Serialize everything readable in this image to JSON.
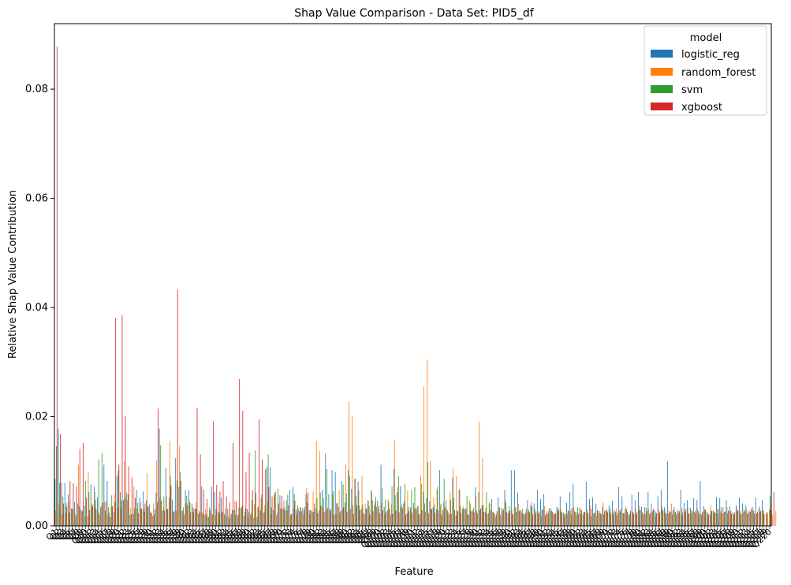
{
  "chart_data": {
    "type": "bar",
    "title": "Shap Value Comparison - Data Set: PID5_df",
    "xlabel": "Feature",
    "ylabel": "Relative Shap Value Contribution",
    "ylim": [
      0,
      0.092
    ],
    "yticks": [
      0.0,
      0.02,
      0.04,
      0.06,
      0.08
    ],
    "ytick_labels": [
      "0.00",
      "0.02",
      "0.04",
      "0.06",
      "0.08"
    ],
    "legend": {
      "title": "model",
      "placement": "top-right",
      "entries": [
        "logistic_reg",
        "random_forest",
        "svm",
        "xgboost"
      ]
    },
    "colors": {
      "logistic_reg": "#1f77b4",
      "random_forest": "#ff7f0e",
      "svm": "#2ca02c",
      "xgboost": "#d62728"
    },
    "tick_label_prefix": "Q",
    "n_features": 220,
    "series": [
      {
        "name": "logistic_reg",
        "values": [
          0.0086,
          0.0178,
          0.008,
          0.0079,
          0.0058,
          0.0032,
          0.0043,
          0.0041,
          0.003,
          0.0037,
          0.0018,
          0.0076,
          0.0072,
          0.0052,
          0.0034,
          0.0112,
          0.0082,
          0.0016,
          0.0025,
          0.0092,
          0.0062,
          0.0047,
          0.0061,
          0.002,
          0.0022,
          0.0066,
          0.0052,
          0.0063,
          0.0047,
          0.0039,
          0.0018,
          0.0061,
          0.0178,
          0.0028,
          0.0106,
          0.0052,
          0.0048,
          0.0124,
          0.0071,
          0.0028,
          0.0066,
          0.0066,
          0.0041,
          0.0031,
          0.0022,
          0.0072,
          0.002,
          0.0016,
          0.0072,
          0.0062,
          0.0026,
          0.0052,
          0.0022,
          0.0031,
          0.0021,
          0.0029,
          0.0019,
          0.0033,
          0.0018,
          0.0031,
          0.0021,
          0.0015,
          0.0016,
          0.0028,
          0.0024,
          0.0108,
          0.0107,
          0.0029,
          0.0019,
          0.0056,
          0.0031,
          0.0047,
          0.0066,
          0.0071,
          0.0029,
          0.0027,
          0.0033,
          0.0058,
          0.0029,
          0.0026,
          0.0032,
          0.0028,
          0.0066,
          0.0132,
          0.0058,
          0.0102,
          0.0098,
          0.0035,
          0.0082,
          0.0043,
          0.0102,
          0.0068,
          0.0086,
          0.0081,
          0.0031,
          0.0021,
          0.0047,
          0.0065,
          0.0039,
          0.0046,
          0.0112,
          0.0035,
          0.0028,
          0.0021,
          0.0104,
          0.0062,
          0.0073,
          0.0041,
          0.0023,
          0.0034,
          0.0042,
          0.0032,
          0.0021,
          0.0063,
          0.0051,
          0.0045,
          0.0034,
          0.0031,
          0.0102,
          0.0029,
          0.0047,
          0.0021,
          0.0088,
          0.0019,
          0.0067,
          0.0031,
          0.0031,
          0.0021,
          0.0026,
          0.0071,
          0.0062,
          0.0038,
          0.0026,
          0.0023,
          0.0049,
          0.0021,
          0.0052,
          0.0033,
          0.0066,
          0.0023,
          0.0102,
          0.0102,
          0.0061,
          0.0028,
          0.0021,
          0.0047,
          0.0038,
          0.0041,
          0.0066,
          0.0049,
          0.0058,
          0.0027,
          0.0033,
          0.0022,
          0.0035,
          0.0054,
          0.0024,
          0.0042,
          0.0062,
          0.0077,
          0.0025,
          0.0033,
          0.0021,
          0.0081,
          0.0049,
          0.0052,
          0.0041,
          0.0023,
          0.0035,
          0.0028,
          0.0037,
          0.0046,
          0.0026,
          0.0071,
          0.0054,
          0.0031,
          0.0021,
          0.0057,
          0.0047,
          0.0062,
          0.0035,
          0.0035,
          0.0062,
          0.0041,
          0.0029,
          0.0054,
          0.0066,
          0.0034,
          0.0118,
          0.0026,
          0.0034,
          0.0027,
          0.0066,
          0.0042,
          0.0047,
          0.0033,
          0.0051,
          0.0047,
          0.0082,
          0.0036,
          0.0026,
          0.0021,
          0.0028,
          0.0053,
          0.0051,
          0.0034,
          0.0047,
          0.0036,
          0.0025,
          0.0038,
          0.0052,
          0.0041,
          0.0038,
          0.0028,
          0.0035,
          0.0052,
          0.0032,
          0.0047
        ]
      },
      {
        "name": "random_forest",
        "values": [
          0.0028,
          0.0038,
          0.0022,
          0.0024,
          0.0045,
          0.0031,
          0.0022,
          0.0112,
          0.0026,
          0.0016,
          0.0098,
          0.0041,
          0.0062,
          0.0025,
          0.0036,
          0.0044,
          0.0018,
          0.0036,
          0.0058,
          0.0034,
          0.0031,
          0.0118,
          0.0047,
          0.0032,
          0.0072,
          0.0032,
          0.0043,
          0.0032,
          0.0097,
          0.0027,
          0.0041,
          0.0121,
          0.0052,
          0.0033,
          0.0054,
          0.0155,
          0.0026,
          0.0028,
          0.0146,
          0.0028,
          0.0042,
          0.0047,
          0.0034,
          0.0043,
          0.0028,
          0.0025,
          0.0031,
          0.0018,
          0.0022,
          0.0019,
          0.0041,
          0.0026,
          0.0032,
          0.0018,
          0.0023,
          0.0047,
          0.0021,
          0.0033,
          0.0026,
          0.0016,
          0.0024,
          0.0039,
          0.0034,
          0.0051,
          0.0025,
          0.0044,
          0.0021,
          0.0057,
          0.0024,
          0.0033,
          0.0047,
          0.0028,
          0.0018,
          0.0031,
          0.0021,
          0.0034,
          0.0021,
          0.0069,
          0.0022,
          0.0063,
          0.0155,
          0.0137,
          0.0034,
          0.0029,
          0.0028,
          0.0058,
          0.0021,
          0.0066,
          0.0031,
          0.0112,
          0.0228,
          0.0201,
          0.0087,
          0.0065,
          0.0092,
          0.0041,
          0.0046,
          0.0062,
          0.0045,
          0.0031,
          0.0042,
          0.0021,
          0.0049,
          0.0039,
          0.0158,
          0.0071,
          0.0034,
          0.0047,
          0.0065,
          0.0031,
          0.0033,
          0.0037,
          0.0092,
          0.0255,
          0.0305,
          0.0119,
          0.0052,
          0.0066,
          0.0037,
          0.0043,
          0.0031,
          0.0063,
          0.0105,
          0.0091,
          0.0066,
          0.0036,
          0.0032,
          0.0047,
          0.0029,
          0.0054,
          0.0191,
          0.0124,
          0.0033,
          0.0044,
          0.0025,
          0.0016,
          0.0034,
          0.0018,
          0.0048,
          0.0027,
          0.0031,
          0.0035,
          0.0041,
          0.0024,
          0.0021,
          0.0026,
          0.0044,
          0.0032,
          0.0022,
          0.0018,
          0.0036,
          0.0021,
          0.0027,
          0.0024,
          0.0029,
          0.0031,
          0.0017,
          0.0022,
          0.0028,
          0.0034,
          0.0019,
          0.0031,
          0.0026,
          0.0024,
          0.0037,
          0.0022,
          0.0019,
          0.0027,
          0.0044,
          0.0031,
          0.0026,
          0.0021,
          0.0032,
          0.0028,
          0.0023,
          0.0036,
          0.0018,
          0.0024,
          0.0029,
          0.0037,
          0.0025,
          0.0022,
          0.0031,
          0.0024,
          0.0017,
          0.0029,
          0.0036,
          0.0027,
          0.0022,
          0.0041,
          0.0025,
          0.0031,
          0.0019,
          0.0028,
          0.0034,
          0.0023,
          0.0026,
          0.0032,
          0.0021,
          0.0027,
          0.0019,
          0.0038,
          0.0024,
          0.0031,
          0.0027,
          0.0022,
          0.0035,
          0.0026,
          0.0021,
          0.0033,
          0.0028,
          0.0024,
          0.0031,
          0.0025,
          0.0029,
          0.0022,
          0.0036,
          0.0027,
          0.0024,
          0.0031,
          0.0021,
          0.0028
        ]
      },
      {
        "name": "svm",
        "values": [
          0.0146,
          0.0078,
          0.0054,
          0.0042,
          0.0024,
          0.0031,
          0.0018,
          0.0036,
          0.0028,
          0.0082,
          0.0062,
          0.0035,
          0.0047,
          0.0122,
          0.0134,
          0.0028,
          0.0034,
          0.0056,
          0.0044,
          0.0102,
          0.0047,
          0.0051,
          0.0057,
          0.0021,
          0.0033,
          0.0042,
          0.0032,
          0.0026,
          0.0036,
          0.0024,
          0.0021,
          0.0043,
          0.0148,
          0.0054,
          0.0031,
          0.0091,
          0.0025,
          0.0083,
          0.0098,
          0.0034,
          0.0055,
          0.0043,
          0.0025,
          0.0031,
          0.0025,
          0.0022,
          0.0021,
          0.0034,
          0.0021,
          0.0031,
          0.0023,
          0.0025,
          0.0018,
          0.0014,
          0.0029,
          0.0021,
          0.0034,
          0.0037,
          0.0032,
          0.0026,
          0.0047,
          0.0138,
          0.0035,
          0.0057,
          0.0038,
          0.0131,
          0.0034,
          0.0059,
          0.0068,
          0.0031,
          0.0034,
          0.0057,
          0.0022,
          0.0058,
          0.0038,
          0.0034,
          0.0029,
          0.0043,
          0.0029,
          0.0026,
          0.0051,
          0.0061,
          0.0051,
          0.0104,
          0.0032,
          0.0064,
          0.0041,
          0.0025,
          0.0076,
          0.0059,
          0.0092,
          0.0038,
          0.0055,
          0.0037,
          0.0039,
          0.0031,
          0.0036,
          0.0047,
          0.0053,
          0.0037,
          0.0069,
          0.0048,
          0.0044,
          0.0072,
          0.0056,
          0.0091,
          0.0038,
          0.0077,
          0.0035,
          0.0066,
          0.0071,
          0.0036,
          0.0077,
          0.0041,
          0.0117,
          0.0031,
          0.0039,
          0.0072,
          0.0041,
          0.0086,
          0.0029,
          0.0048,
          0.0051,
          0.0028,
          0.0036,
          0.0032,
          0.0055,
          0.0041,
          0.0033,
          0.0028,
          0.0029,
          0.0038,
          0.0062,
          0.0041,
          0.0026,
          0.0021,
          0.0034,
          0.0028,
          0.0042,
          0.0036,
          0.0021,
          0.0033,
          0.0027,
          0.0031,
          0.0024,
          0.0029,
          0.0035,
          0.0022,
          0.0027,
          0.0031,
          0.0019,
          0.0024,
          0.0028,
          0.0021,
          0.0033,
          0.0026,
          0.0023,
          0.0029,
          0.0021,
          0.0027,
          0.0034,
          0.0022,
          0.0025,
          0.0031,
          0.0018,
          0.0024,
          0.0029,
          0.0023,
          0.0021,
          0.0028,
          0.0032,
          0.0025,
          0.0019,
          0.0027,
          0.0023,
          0.0031,
          0.0022,
          0.0026,
          0.0021,
          0.0029,
          0.0024,
          0.0033,
          0.0021,
          0.0027,
          0.0025,
          0.0022,
          0.0031,
          0.0024,
          0.0028,
          0.0021,
          0.0026,
          0.0023,
          0.0032,
          0.0025,
          0.0022,
          0.0029,
          0.0024,
          0.0027,
          0.0021,
          0.0031,
          0.0023,
          0.0028,
          0.0025,
          0.0022,
          0.0034,
          0.0026,
          0.0023,
          0.0029,
          0.0021,
          0.0027,
          0.0024,
          0.0031,
          0.0022,
          0.0026,
          0.0028,
          0.0023,
          0.0025,
          0.0029,
          0.0021,
          0.0054
        ]
      },
      {
        "name": "xgboost",
        "values": [
          0.0878,
          0.0168,
          0.0041,
          0.0035,
          0.0082,
          0.0078,
          0.0072,
          0.0141,
          0.0152,
          0.0052,
          0.0029,
          0.0038,
          0.0031,
          0.0021,
          0.0042,
          0.0045,
          0.0024,
          0.0036,
          0.0381,
          0.0112,
          0.0386,
          0.0201,
          0.0109,
          0.0089,
          0.0051,
          0.0023,
          0.0031,
          0.0041,
          0.0035,
          0.0024,
          0.0031,
          0.0215,
          0.0046,
          0.0028,
          0.0031,
          0.0074,
          0.0028,
          0.0433,
          0.0082,
          0.0021,
          0.0038,
          0.0025,
          0.0032,
          0.0216,
          0.0131,
          0.0066,
          0.0049,
          0.0029,
          0.0191,
          0.0075,
          0.0063,
          0.0082,
          0.0054,
          0.0043,
          0.0152,
          0.0044,
          0.0269,
          0.0211,
          0.0098,
          0.0134,
          0.0065,
          0.0061,
          0.0195,
          0.0122,
          0.0103,
          0.0071,
          0.0054,
          0.0063,
          0.0041,
          0.0055,
          0.0028,
          0.0038,
          0.0021,
          0.0046,
          0.0032,
          0.0027,
          0.0035,
          0.0061,
          0.0028,
          0.0041,
          0.0023,
          0.0037,
          0.0025,
          0.0033,
          0.0029,
          0.0021,
          0.0042,
          0.0027,
          0.0034,
          0.0026,
          0.0031,
          0.0022,
          0.0038,
          0.0029,
          0.0024,
          0.0032,
          0.0021,
          0.0027,
          0.0035,
          0.0023,
          0.0029,
          0.0026,
          0.0031,
          0.0022,
          0.0028,
          0.0025,
          0.0033,
          0.0021,
          0.0027,
          0.0024,
          0.0031,
          0.0022,
          0.0029,
          0.0026,
          0.0023,
          0.0031,
          0.0024,
          0.0028,
          0.0021,
          0.0034,
          0.0025,
          0.0022,
          0.0029,
          0.0027,
          0.0024,
          0.0031,
          0.0021,
          0.0028,
          0.0025,
          0.0023,
          0.0032,
          0.0026,
          0.0022,
          0.0029,
          0.0024,
          0.0027,
          0.0021,
          0.0031,
          0.0025,
          0.0028,
          0.0022,
          0.0026,
          0.0029,
          0.0023,
          0.0031,
          0.0025,
          0.0021,
          0.0027,
          0.0024,
          0.0029,
          0.0022,
          0.0031,
          0.0026,
          0.0023,
          0.0028,
          0.0024,
          0.0021,
          0.0027,
          0.0032,
          0.0025,
          0.0022,
          0.0029,
          0.0026,
          0.0023,
          0.0031,
          0.0024,
          0.0028,
          0.0021,
          0.0027,
          0.0025,
          0.0022,
          0.0029,
          0.0024,
          0.0031,
          0.0023,
          0.0026,
          0.0028,
          0.0022,
          0.0025,
          0.0029,
          0.0021,
          0.0027,
          0.0024,
          0.0031,
          0.0023,
          0.0026,
          0.0028,
          0.0022,
          0.0025,
          0.0029,
          0.0021,
          0.0027,
          0.0024,
          0.0031,
          0.0023,
          0.0026,
          0.0028,
          0.0022,
          0.0025,
          0.0029,
          0.0021,
          0.0027,
          0.0024,
          0.0031,
          0.0023,
          0.0026,
          0.0028,
          0.0022,
          0.0025,
          0.0029,
          0.0021,
          0.0027,
          0.0024,
          0.0031,
          0.0023,
          0.0026,
          0.0028,
          0.0022,
          0.0025,
          0.0029,
          0.0062
        ]
      }
    ]
  }
}
